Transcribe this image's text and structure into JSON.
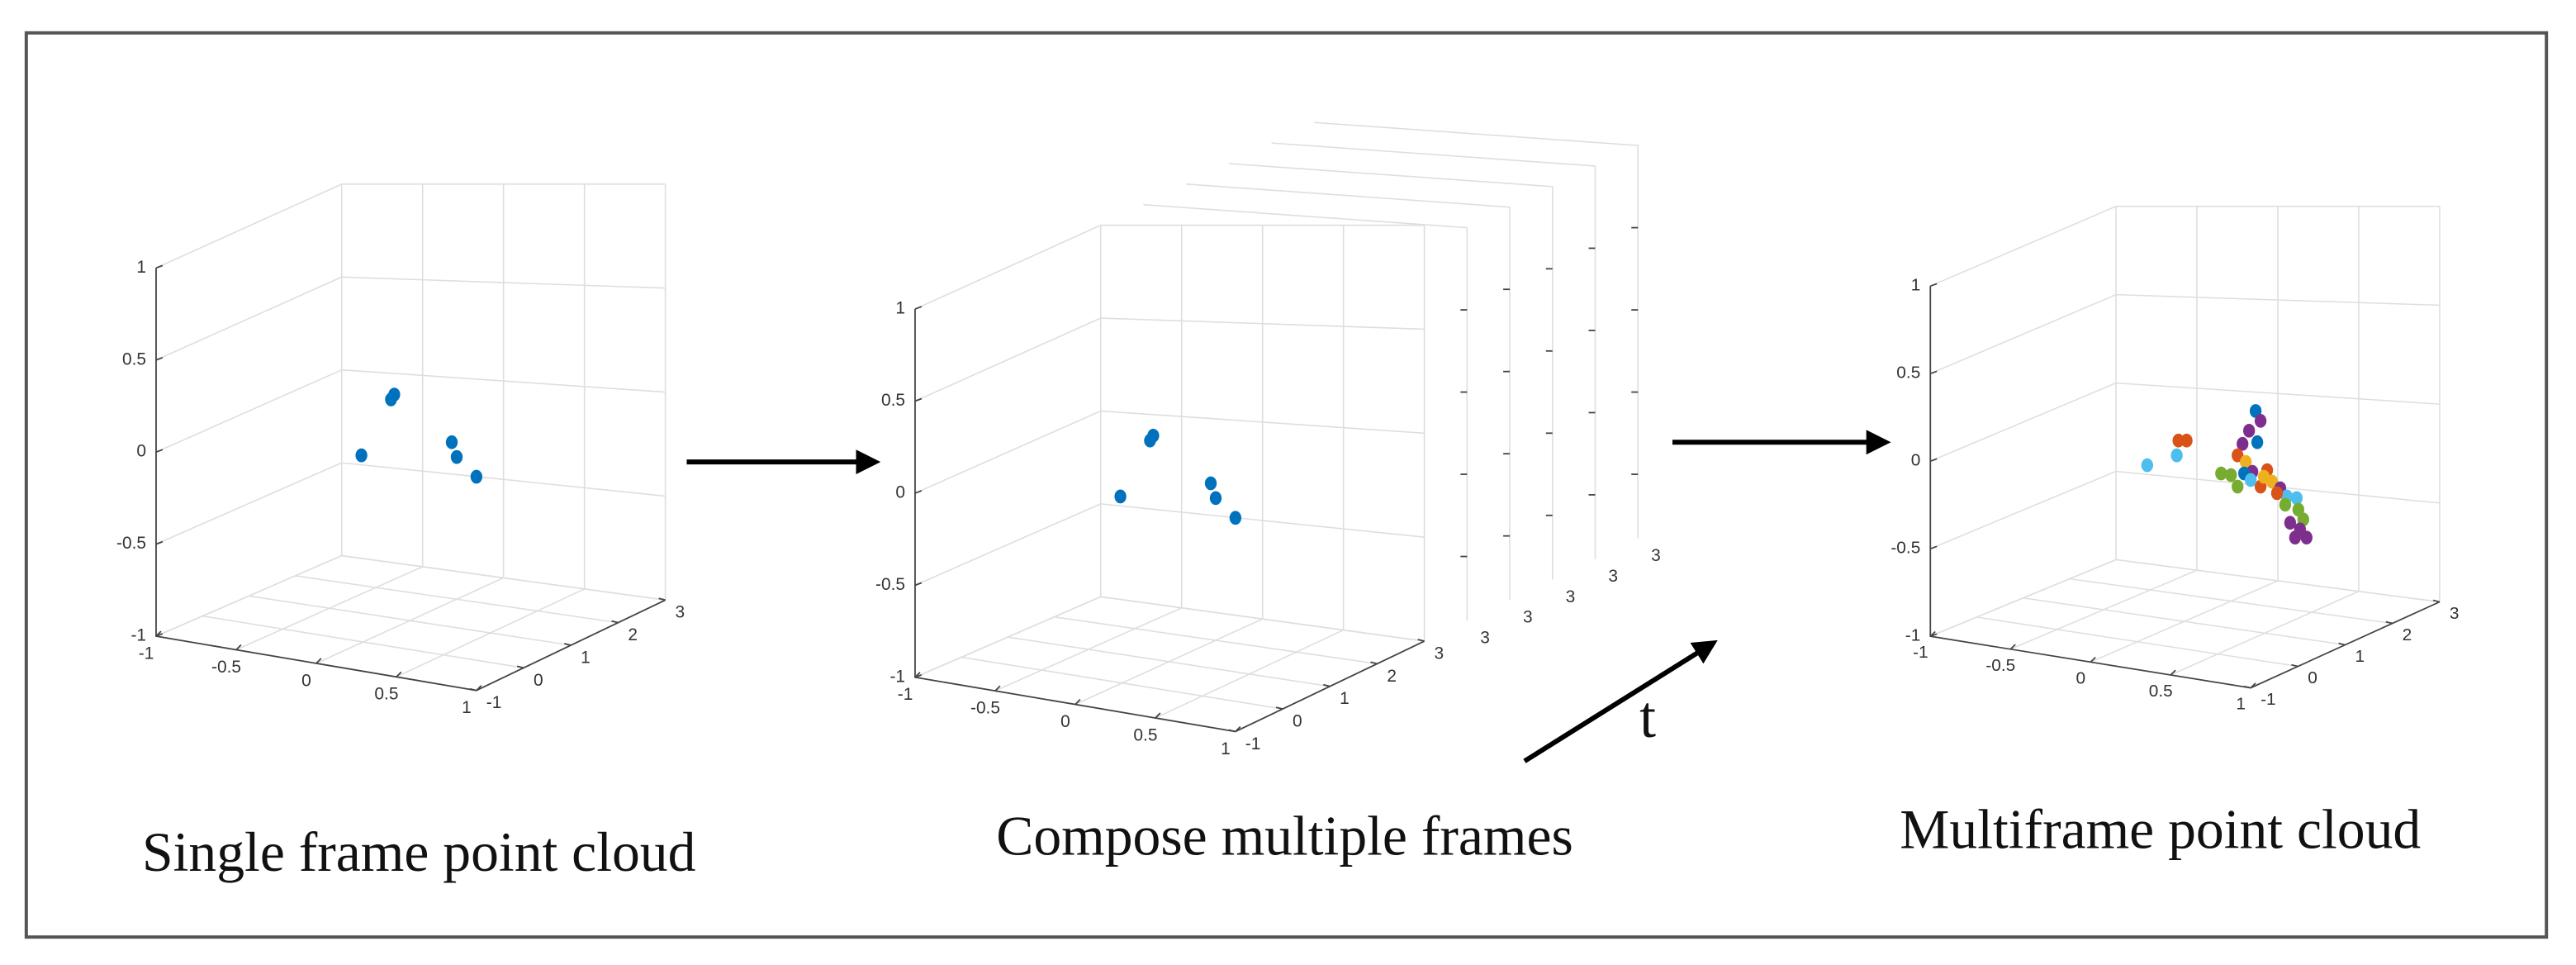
{
  "panels": [
    {
      "caption": "Single frame point cloud",
      "z_ticks": [
        "1",
        "0.5",
        "0",
        "-0.5",
        "-1"
      ],
      "x_ticks": [
        "-1",
        "-0.5",
        "0",
        "0.5",
        "1"
      ],
      "y_ticks": [
        "-1",
        "0",
        "1",
        "2",
        "3"
      ]
    },
    {
      "caption": "Compose multiple frames",
      "z_ticks": [
        "1",
        "0.5",
        "0",
        "-0.5",
        "-1"
      ],
      "x_ticks": [
        "-1",
        "-0.5",
        "0",
        "0.5",
        "1"
      ],
      "y_ticks": [
        "-1",
        "0",
        "1",
        "2",
        "3"
      ]
    },
    {
      "caption": "Multiframe point cloud",
      "z_ticks": [
        "1",
        "0.5",
        "0",
        "-0.5",
        "-1"
      ],
      "x_ticks": [
        "-1",
        "-0.5",
        "0",
        "0.5",
        "1"
      ],
      "y_ticks": [
        "-1",
        "0",
        "1",
        "2",
        "3"
      ]
    }
  ],
  "stacked_frame_ticks": [
    "3",
    "3",
    "3",
    "3",
    "3"
  ],
  "time_label": "t"
}
